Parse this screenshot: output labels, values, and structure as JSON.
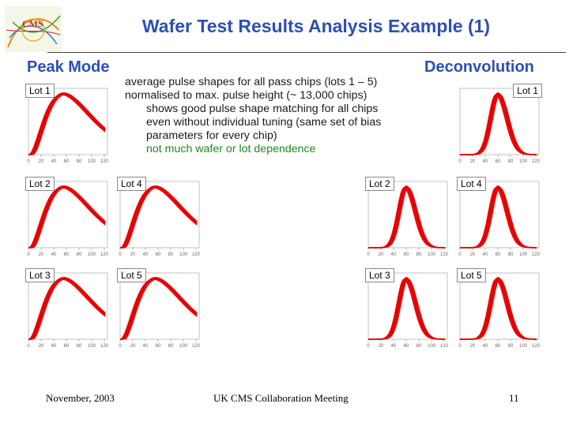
{
  "slide": {
    "title": "Wafer Test Results Analysis Example (1)",
    "logo_text": "CMS",
    "peak_heading": "Peak Mode",
    "deconv_heading": "Deconvolution",
    "description": {
      "line1": "average pulse shapes for all pass chips (lots 1 – 5)",
      "line2": "normalised to max. pulse height (~ 13,000 chips)",
      "line3": "shows good pulse shape matching for all chips",
      "line4": "even without individual tuning (same set of bias",
      "line5": "parameters for every chip)",
      "line6": "not much wafer or lot dependence"
    },
    "footer": {
      "date": "November, 2003",
      "meeting": "UK CMS Collaboration Meeting",
      "page": "11"
    }
  },
  "colors": {
    "title": "#2b4fb5",
    "curve": "#e60000",
    "highlight": "#1d8a1d"
  },
  "panels": [
    {
      "id": "p-lot1",
      "mode": "peak",
      "label": "Lot 1",
      "ticks": [
        "0",
        "20",
        "40",
        "60",
        "80",
        "100",
        "120"
      ]
    },
    {
      "id": "p-lot2",
      "mode": "peak",
      "label": "Lot 2",
      "ticks": [
        "0",
        "20",
        "40",
        "60",
        "80",
        "100",
        "120"
      ]
    },
    {
      "id": "p-lot4",
      "mode": "peak",
      "label": "Lot 4",
      "ticks": [
        "0",
        "20",
        "40",
        "60",
        "80",
        "100",
        "120"
      ]
    },
    {
      "id": "p-lot3",
      "mode": "peak",
      "label": "Lot 3",
      "ticks": [
        "0",
        "20",
        "40",
        "60",
        "80",
        "100",
        "120"
      ]
    },
    {
      "id": "p-lot5",
      "mode": "peak",
      "label": "Lot 5",
      "ticks": [
        "0",
        "20",
        "40",
        "60",
        "80",
        "100",
        "120"
      ]
    },
    {
      "id": "d-lot1",
      "mode": "deconv",
      "label": "Lot 1",
      "ticks": [
        "0",
        "20",
        "40",
        "60",
        "80",
        "100",
        "120"
      ]
    },
    {
      "id": "d-lot2",
      "mode": "deconv",
      "label": "Lot 2",
      "ticks": [
        "0",
        "20",
        "40",
        "60",
        "80",
        "100",
        "120"
      ]
    },
    {
      "id": "d-lot4",
      "mode": "deconv",
      "label": "Lot 4",
      "ticks": [
        "0",
        "20",
        "40",
        "60",
        "80",
        "100",
        "120"
      ]
    },
    {
      "id": "d-lot3",
      "mode": "deconv",
      "label": "Lot 3",
      "ticks": [
        "0",
        "20",
        "40",
        "60",
        "80",
        "100",
        "120"
      ]
    },
    {
      "id": "d-lot5",
      "mode": "deconv",
      "label": "Lot 5",
      "ticks": [
        "0",
        "20",
        "40",
        "60",
        "80",
        "100",
        "120"
      ]
    }
  ]
}
